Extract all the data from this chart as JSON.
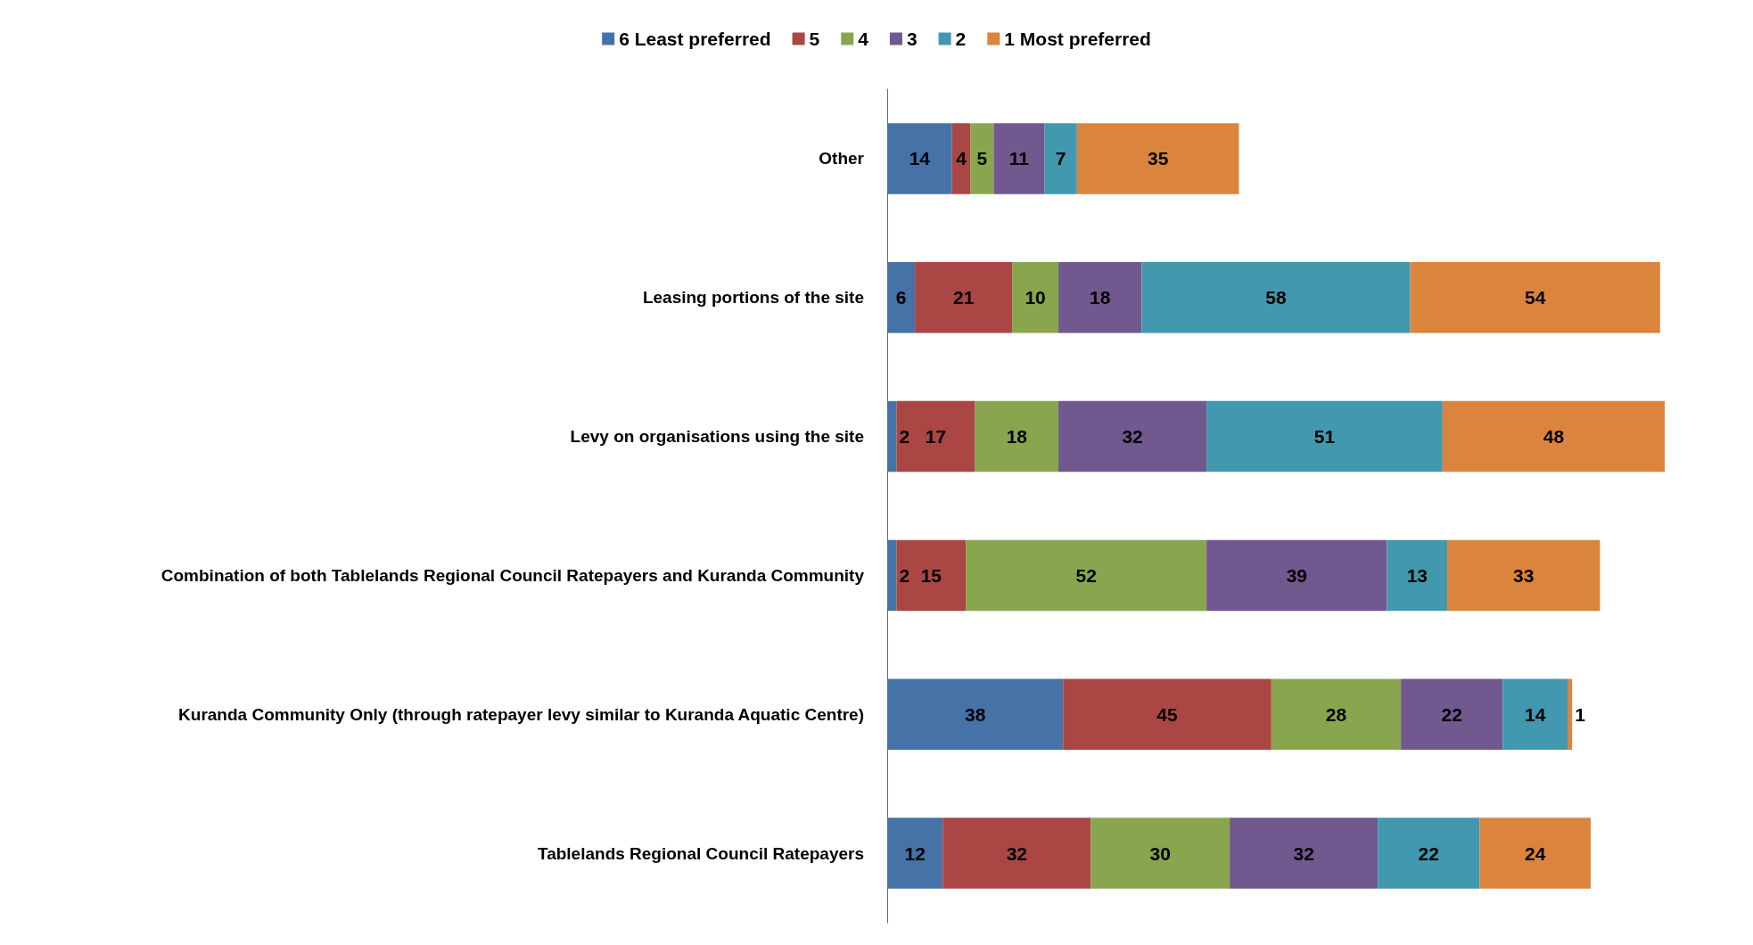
{
  "chart_data": {
    "type": "bar",
    "orientation": "horizontal",
    "stacked": true,
    "data_labels": true,
    "legend": "top",
    "tick_labels": "y",
    "categories": [
      "Other",
      "Leasing portions of the site",
      "Levy on organisations using the site",
      "Combination of both Tablelands Regional Council Ratepayers and Kuranda Community",
      "Kuranda Community Only (through ratepayer levy similar to Kuranda Aquatic Centre)",
      "Tablelands Regional Council Ratepayers"
    ],
    "series": [
      {
        "name": "6 Least preferred",
        "color": "#4572a7",
        "values": [
          14,
          6,
          2,
          2,
          38,
          12
        ]
      },
      {
        "name": "5",
        "color": "#aa4643",
        "values": [
          4,
          21,
          17,
          15,
          45,
          32
        ]
      },
      {
        "name": "4",
        "color": "#89a54e",
        "values": [
          5,
          10,
          18,
          52,
          28,
          30
        ]
      },
      {
        "name": "3",
        "color": "#71588f",
        "values": [
          11,
          18,
          32,
          39,
          22,
          32
        ]
      },
      {
        "name": "2",
        "color": "#4198af",
        "values": [
          7,
          58,
          51,
          13,
          14,
          22
        ]
      },
      {
        "name": "1 Most preferred",
        "color": "#db843d",
        "values": [
          35,
          54,
          48,
          33,
          1,
          24
        ]
      }
    ]
  }
}
